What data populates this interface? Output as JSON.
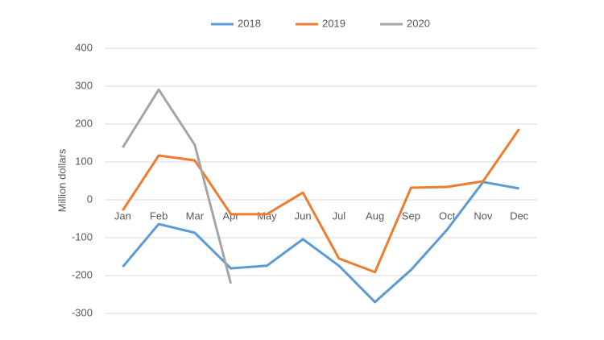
{
  "chart_data": {
    "type": "line",
    "y_label": "Million dollars",
    "categories": [
      "Jan",
      "Feb",
      "Mar",
      "Apr",
      "May",
      "Jun",
      "Jul",
      "Aug",
      "Sep",
      "Oct",
      "Nov",
      "Dec"
    ],
    "series": [
      {
        "name": "2018",
        "color": "#5b9bd5",
        "values": [
          -177,
          -64,
          -87,
          -181,
          -174,
          -104,
          -174,
          -270,
          -185,
          -79,
          47,
          30
        ]
      },
      {
        "name": "2019",
        "color": "#ed7d31",
        "values": [
          -28,
          117,
          104,
          -38,
          -38,
          19,
          -155,
          -191,
          32,
          34,
          49,
          187
        ]
      },
      {
        "name": "2020",
        "color": "#a5a5a5",
        "values": [
          138,
          291,
          145,
          -221,
          null,
          null,
          null,
          null,
          null,
          null,
          null,
          null
        ]
      }
    ],
    "ylim": [
      -300,
      400
    ],
    "yticks": [
      -300,
      -200,
      -100,
      0,
      100,
      200,
      300,
      400
    ],
    "grid": true
  }
}
